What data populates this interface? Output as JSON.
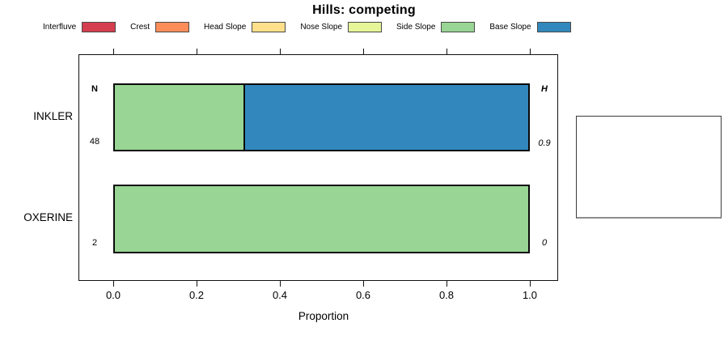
{
  "title": "Hills: competing",
  "legend": {
    "items": [
      {
        "label": "Interfluve",
        "color": "#D53E4F"
      },
      {
        "label": "Crest",
        "color": "#FC8D59"
      },
      {
        "label": "Head Slope",
        "color": "#FEE08B"
      },
      {
        "label": "Nose Slope",
        "color": "#E6F598"
      },
      {
        "label": "Side Slope",
        "color": "#99D594"
      },
      {
        "label": "Base Slope",
        "color": "#3288BD"
      }
    ]
  },
  "axis": {
    "label": "Proportion",
    "ticks": [
      "0.0",
      "0.2",
      "0.4",
      "0.6",
      "0.8",
      "1.0"
    ]
  },
  "annotations": {
    "n_header": "N",
    "h_header": "H"
  },
  "chart_data": {
    "type": "bar",
    "orientation": "horizontal-stacked",
    "title": "Hills: competing",
    "categories": [
      "INKLER",
      "OXERINE"
    ],
    "series": [
      {
        "name": "Interfluve",
        "color": "#D53E4F",
        "values": [
          0,
          0
        ]
      },
      {
        "name": "Crest",
        "color": "#FC8D59",
        "values": [
          0,
          0
        ]
      },
      {
        "name": "Head Slope",
        "color": "#FEE08B",
        "values": [
          0,
          0
        ]
      },
      {
        "name": "Nose Slope",
        "color": "#E6F598",
        "values": [
          0,
          0
        ]
      },
      {
        "name": "Side Slope",
        "color": "#99D594",
        "values": [
          0.31,
          1.0
        ]
      },
      {
        "name": "Base Slope",
        "color": "#3288BD",
        "values": [
          0.69,
          0
        ]
      }
    ],
    "xlabel": "Proportion",
    "xlim": [
      0,
      1
    ],
    "x_ticks": [
      0.0,
      0.2,
      0.4,
      0.6,
      0.8,
      1.0
    ],
    "legend_position": "top",
    "grid": false,
    "bar_annotations": [
      {
        "category": "INKLER",
        "N": "48",
        "H": "0.9"
      },
      {
        "category": "OXERINE",
        "N": "2",
        "H": "0"
      }
    ],
    "bars": [
      {
        "category": "INKLER",
        "segments": [
          {
            "name": "Side Slope",
            "color": "#99D594",
            "value": 0.312
          },
          {
            "name": "Base Slope",
            "color": "#3288BD",
            "value": 0.688
          }
        ]
      },
      {
        "category": "OXERINE",
        "segments": [
          {
            "name": "Side Slope",
            "color": "#99D594",
            "value": 1.0
          }
        ]
      }
    ]
  }
}
